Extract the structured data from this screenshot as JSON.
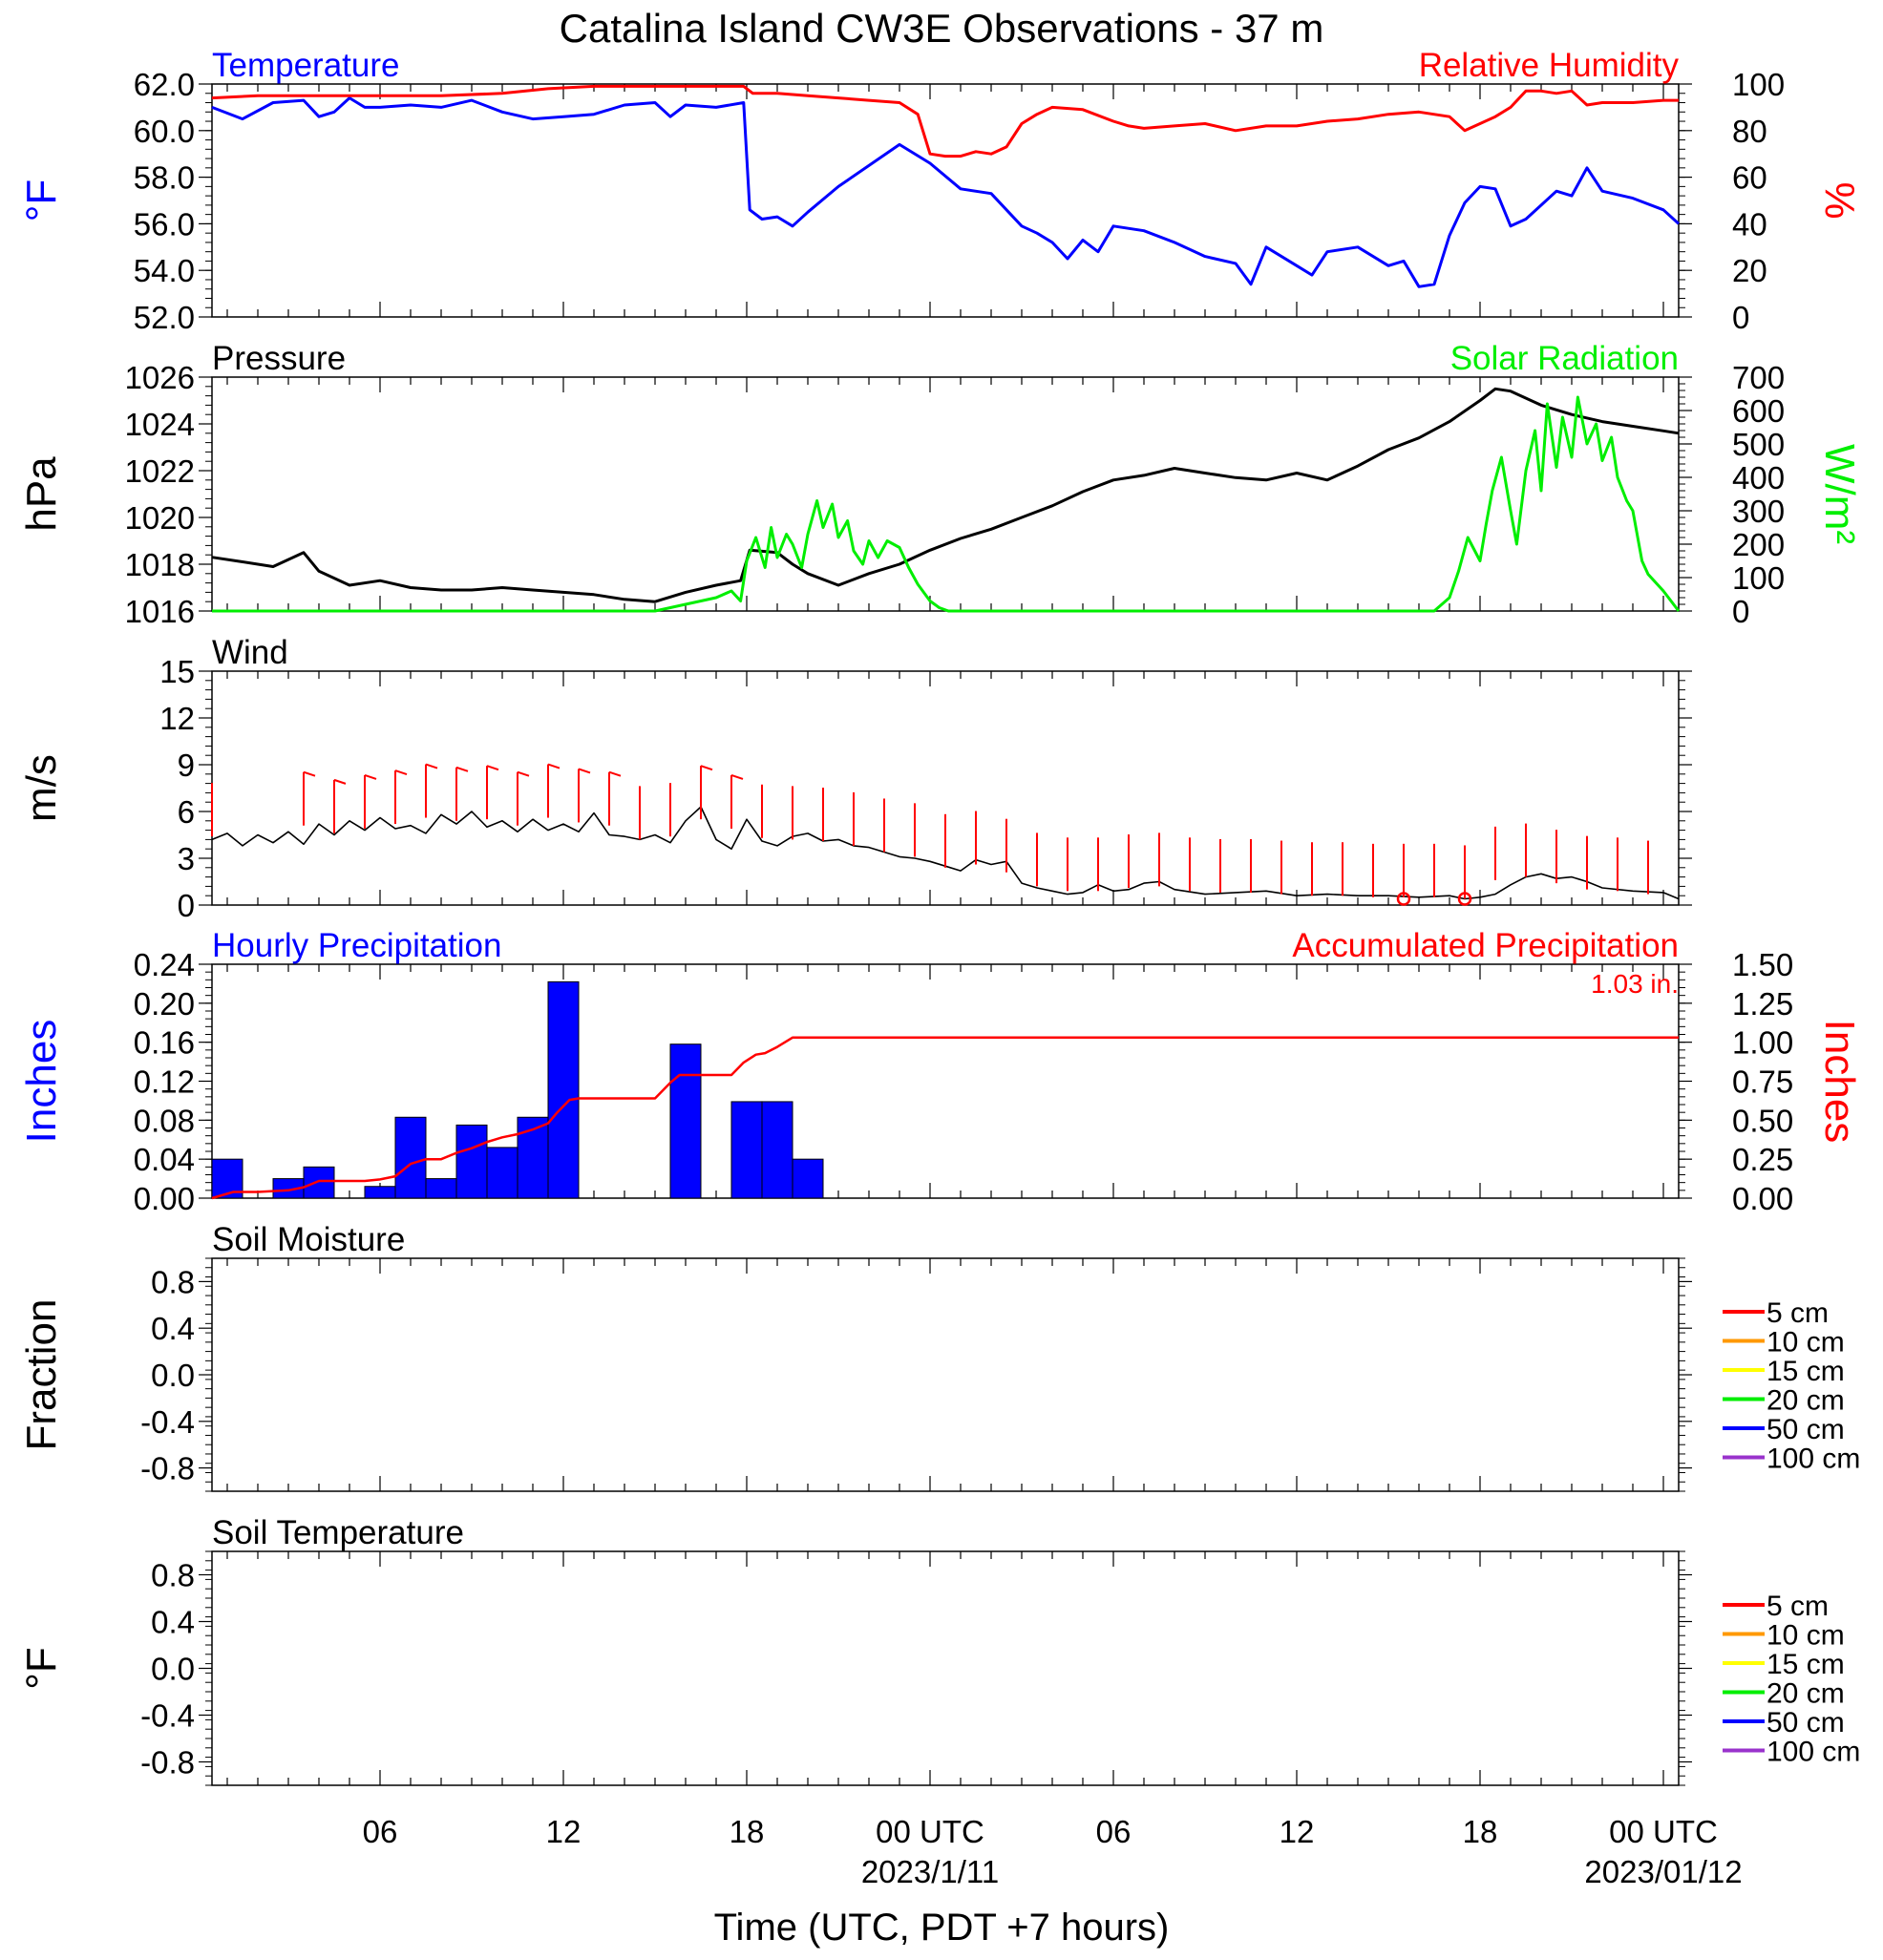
{
  "title": "Catalina Island CW3E Observations - 37 m",
  "xlabel": "Time (UTC, PDT +7 hours)",
  "x_ticks": [
    {
      "hour": 6,
      "label": "06",
      "sub": ""
    },
    {
      "hour": 12,
      "label": "12",
      "sub": ""
    },
    {
      "hour": 18,
      "label": "18",
      "sub": ""
    },
    {
      "hour": 24,
      "label": "00 UTC",
      "sub": "2023/1/11"
    },
    {
      "hour": 30,
      "label": "06",
      "sub": ""
    },
    {
      "hour": 36,
      "label": "12",
      "sub": ""
    },
    {
      "hour": 42,
      "label": "18",
      "sub": ""
    },
    {
      "hour": 48,
      "label": "00 UTC",
      "sub": "2023/01/12"
    }
  ],
  "x_range_hours": [
    0.5,
    48.5
  ],
  "colors": {
    "temperature": "#0000ff",
    "humidity": "#ff0000",
    "pressure": "#000000",
    "solar": "#00ee00",
    "wind": "#000000",
    "barb": "#ff0000",
    "precip_bar": "#0000ff",
    "precip_accum": "#ff0000"
  },
  "legend": [
    {
      "label": "5 cm",
      "color": "#ff0000"
    },
    {
      "label": "10 cm",
      "color": "#ff9900"
    },
    {
      "label": "15 cm",
      "color": "#ffff00"
    },
    {
      "label": "20 cm",
      "color": "#00ee00"
    },
    {
      "label": "50 cm",
      "color": "#0000ff"
    },
    {
      "label": "100 cm",
      "color": "#9933cc"
    }
  ],
  "chart_data": [
    {
      "type": "line",
      "panel_title_left": "Temperature",
      "panel_title_right": "Relative Humidity",
      "ylabel_left": "°F",
      "ylabel_right": "%",
      "ylim_left": [
        52,
        62
      ],
      "yticks_left": [
        "62.0",
        "60.0",
        "58.0",
        "56.0",
        "54.0",
        "52.0"
      ],
      "ylim_right": [
        0,
        100
      ],
      "yticks_right": [
        "100",
        "80",
        "60",
        "40",
        "20",
        "0"
      ],
      "series": [
        {
          "name": "Temperature",
          "axis": "left",
          "x": [
            0.5,
            1.5,
            2.5,
            3.5,
            4.0,
            4.5,
            5.0,
            5.5,
            6.0,
            7.0,
            8.0,
            9.0,
            10.0,
            11.0,
            12.0,
            13.0,
            14.0,
            15.0,
            15.5,
            16.0,
            17.0,
            17.9,
            18.1,
            18.5,
            19.0,
            19.5,
            20.0,
            21.0,
            22.0,
            23.0,
            24.0,
            25.0,
            26.0,
            27.0,
            27.5,
            28.0,
            28.5,
            29.0,
            29.5,
            30.0,
            31.0,
            32.0,
            32.5,
            33.0,
            34.0,
            34.5,
            35.0,
            36.0,
            36.5,
            37.0,
            38.0,
            39.0,
            39.5,
            40.0,
            40.5,
            41.0,
            41.5,
            42.0,
            42.5,
            43.0,
            43.5,
            44.0,
            44.5,
            45.0,
            45.5,
            46.0,
            47.0,
            48.0,
            48.5
          ],
          "values": [
            61.0,
            60.5,
            61.2,
            61.3,
            60.6,
            60.8,
            61.4,
            61.0,
            61.0,
            61.1,
            61.0,
            61.3,
            60.8,
            60.5,
            60.6,
            60.7,
            61.1,
            61.2,
            60.6,
            61.1,
            61.0,
            61.2,
            56.6,
            56.2,
            56.3,
            55.9,
            56.5,
            57.6,
            58.5,
            59.4,
            58.6,
            57.5,
            57.3,
            55.9,
            55.6,
            55.2,
            54.5,
            55.3,
            54.8,
            55.9,
            55.7,
            55.2,
            54.9,
            54.6,
            54.3,
            53.4,
            55.0,
            54.2,
            53.8,
            54.8,
            55.0,
            54.2,
            54.4,
            53.3,
            53.4,
            55.5,
            56.9,
            57.6,
            57.5,
            55.9,
            56.2,
            56.8,
            57.4,
            57.2,
            58.4,
            57.4,
            57.1,
            56.6,
            56.0
          ]
        },
        {
          "name": "Relative Humidity",
          "axis": "right",
          "x": [
            0.5,
            2.0,
            4.0,
            6.0,
            8.0,
            10.0,
            11.5,
            13.0,
            14.5,
            16.0,
            17.0,
            17.9,
            18.2,
            19.0,
            20.0,
            21.0,
            22.0,
            23.0,
            23.6,
            24.0,
            24.5,
            25.0,
            25.5,
            26.0,
            26.5,
            27.0,
            27.5,
            28.0,
            29.0,
            30.0,
            30.5,
            31.0,
            32.0,
            33.0,
            34.0,
            35.0,
            36.0,
            37.0,
            38.0,
            39.0,
            40.0,
            41.0,
            41.5,
            42.0,
            42.5,
            43.0,
            43.5,
            44.0,
            44.5,
            45.0,
            45.5,
            46.0,
            47.0,
            48.0,
            48.5
          ],
          "values": [
            94,
            95,
            95,
            95,
            95,
            96,
            98,
            99,
            99,
            99,
            99,
            99,
            96,
            96,
            95,
            94,
            93,
            92,
            87,
            70,
            69,
            69,
            71,
            70,
            73,
            83,
            87,
            90,
            89,
            84,
            82,
            81,
            82,
            83,
            80,
            82,
            82,
            84,
            85,
            87,
            88,
            86,
            80,
            83,
            86,
            90,
            97,
            97,
            96,
            97,
            91,
            92,
            92,
            93,
            93
          ]
        }
      ]
    },
    {
      "type": "line",
      "panel_title_left": "Pressure",
      "panel_title_right": "Solar Radiation",
      "ylabel_left": "hPa",
      "ylabel_right": "W/m²",
      "ylim_left": [
        1016,
        1026
      ],
      "yticks_left": [
        "1026",
        "1024",
        "1022",
        "1020",
        "1018",
        "1016"
      ],
      "ylim_right": [
        0,
        700
      ],
      "yticks_right": [
        "700",
        "600",
        "500",
        "400",
        "300",
        "200",
        "100",
        "0"
      ],
      "series": [
        {
          "name": "Pressure",
          "axis": "left",
          "x": [
            0.5,
            1.5,
            2.5,
            3.5,
            4.0,
            5.0,
            6.0,
            7.0,
            8.0,
            9.0,
            10.0,
            11.0,
            12.0,
            13.0,
            14.0,
            15.0,
            16.0,
            17.0,
            17.8,
            18.1,
            19.0,
            19.5,
            20.0,
            21.0,
            22.0,
            23.0,
            24.0,
            25.0,
            26.0,
            27.0,
            28.0,
            29.0,
            30.0,
            31.0,
            32.0,
            33.0,
            34.0,
            35.0,
            36.0,
            37.0,
            38.0,
            39.0,
            40.0,
            41.0,
            42.0,
            42.5,
            43.0,
            44.0,
            45.0,
            46.0,
            47.0,
            48.0,
            48.5
          ],
          "values": [
            1018.3,
            1018.1,
            1017.9,
            1018.5,
            1017.7,
            1017.1,
            1017.3,
            1017.0,
            1016.9,
            1016.9,
            1017.0,
            1016.9,
            1016.8,
            1016.7,
            1016.5,
            1016.4,
            1016.8,
            1017.1,
            1017.3,
            1018.6,
            1018.5,
            1018.0,
            1017.6,
            1017.1,
            1017.6,
            1018.0,
            1018.6,
            1019.1,
            1019.5,
            1020.0,
            1020.5,
            1021.1,
            1021.6,
            1021.8,
            1022.1,
            1021.9,
            1021.7,
            1021.6,
            1021.9,
            1021.6,
            1022.2,
            1022.9,
            1023.4,
            1024.1,
            1025.0,
            1025.5,
            1025.4,
            1024.8,
            1024.4,
            1024.1,
            1023.9,
            1023.7,
            1023.6
          ]
        },
        {
          "name": "Solar Radiation",
          "axis": "right",
          "x": [
            0.5,
            15.0,
            15.5,
            16.0,
            16.5,
            17.0,
            17.5,
            17.8,
            18.0,
            18.3,
            18.6,
            18.8,
            19.0,
            19.3,
            19.5,
            19.8,
            20.0,
            20.3,
            20.5,
            20.8,
            21.0,
            21.3,
            21.5,
            21.8,
            22.0,
            22.3,
            22.6,
            23.0,
            23.3,
            23.6,
            24.0,
            24.3,
            24.6,
            25.0,
            40.5,
            41.0,
            41.3,
            41.6,
            42.0,
            42.2,
            42.4,
            42.7,
            43.0,
            43.2,
            43.5,
            43.8,
            44.0,
            44.2,
            44.5,
            44.7,
            45.0,
            45.2,
            45.5,
            45.8,
            46.0,
            46.3,
            46.5,
            46.8,
            47.0,
            47.3,
            47.5,
            48.0,
            48.5
          ],
          "values": [
            0,
            0,
            10,
            20,
            30,
            40,
            60,
            30,
            150,
            220,
            130,
            250,
            160,
            230,
            200,
            130,
            230,
            330,
            250,
            320,
            220,
            270,
            180,
            140,
            210,
            160,
            210,
            190,
            130,
            80,
            30,
            10,
            0,
            0,
            0,
            40,
            120,
            220,
            150,
            260,
            360,
            460,
            300,
            200,
            420,
            540,
            360,
            620,
            430,
            580,
            460,
            640,
            500,
            560,
            450,
            520,
            400,
            330,
            300,
            150,
            110,
            60,
            0
          ]
        }
      ]
    },
    {
      "type": "line",
      "panel_title_left": "Wind",
      "ylabel_left": "m/s",
      "ylim_left": [
        0,
        15
      ],
      "yticks_left": [
        "15",
        "12",
        "9",
        "6",
        "3",
        "0"
      ],
      "series": [
        {
          "name": "Wind",
          "axis": "left",
          "x": [
            0.5,
            1.0,
            1.5,
            2.0,
            2.5,
            3.0,
            3.5,
            4.0,
            4.5,
            5.0,
            5.5,
            6.0,
            6.5,
            7.0,
            7.5,
            8.0,
            8.5,
            9.0,
            9.5,
            10.0,
            10.5,
            11.0,
            11.5,
            12.0,
            12.5,
            13.0,
            13.5,
            14.0,
            14.5,
            15.0,
            15.5,
            16.0,
            16.5,
            17.0,
            17.5,
            18.0,
            18.5,
            19.0,
            19.5,
            20.0,
            20.5,
            21.0,
            21.5,
            22.0,
            22.5,
            23.0,
            23.5,
            24.0,
            24.5,
            25.0,
            25.5,
            26.0,
            26.5,
            27.0,
            27.5,
            28.0,
            28.5,
            29.0,
            29.5,
            30.0,
            30.5,
            31.0,
            31.5,
            32.0,
            33.0,
            34.0,
            35.0,
            36.0,
            37.0,
            38.0,
            39.0,
            40.0,
            41.0,
            41.5,
            42.0,
            42.5,
            43.0,
            43.5,
            44.0,
            44.5,
            45.0,
            45.5,
            46.0,
            47.0,
            48.0,
            48.5
          ],
          "values": [
            4.2,
            4.6,
            3.8,
            4.5,
            4.0,
            4.7,
            3.9,
            5.2,
            4.5,
            5.4,
            4.8,
            5.6,
            4.9,
            5.1,
            4.6,
            5.8,
            5.2,
            6.0,
            5.0,
            5.4,
            4.7,
            5.5,
            4.8,
            5.2,
            4.7,
            5.9,
            4.5,
            4.4,
            4.2,
            4.5,
            4.0,
            5.4,
            6.3,
            4.2,
            3.6,
            5.5,
            4.1,
            3.8,
            4.4,
            4.6,
            4.1,
            4.2,
            3.8,
            3.7,
            3.4,
            3.1,
            3.0,
            2.8,
            2.5,
            2.2,
            2.9,
            2.6,
            2.8,
            1.4,
            1.1,
            0.9,
            0.7,
            0.8,
            1.3,
            0.9,
            1.0,
            1.4,
            1.5,
            1.0,
            0.7,
            0.8,
            0.9,
            0.6,
            0.7,
            0.6,
            0.6,
            0.5,
            0.6,
            0.4,
            0.5,
            0.7,
            1.3,
            1.8,
            2.0,
            1.7,
            1.8,
            1.5,
            1.1,
            0.9,
            0.8,
            0.4
          ]
        }
      ],
      "barbs": {
        "x": [
          0.5,
          3.5,
          4.5,
          5.5,
          6.5,
          7.5,
          8.5,
          9.5,
          10.5,
          11.5,
          12.5,
          13.5,
          14.5,
          15.5,
          16.5,
          17.5,
          18.5,
          19.5,
          20.5,
          21.5,
          22.5,
          23.5,
          24.5,
          25.5,
          26.5,
          27.5,
          28.5,
          29.5,
          30.5,
          31.5,
          32.5,
          33.5,
          34.5,
          35.5,
          36.5,
          37.5,
          38.5,
          39.5,
          40.5,
          41.5,
          42.5,
          43.5,
          44.5,
          45.5,
          46.5,
          47.5
        ],
        "speed": [
          4.4,
          5.1,
          4.6,
          4.9,
          5.2,
          5.6,
          5.4,
          5.5,
          5.1,
          5.6,
          5.3,
          5.1,
          4.2,
          4.4,
          5.5,
          4.9,
          4.3,
          4.2,
          4.1,
          3.8,
          3.4,
          3.1,
          2.4,
          2.6,
          2.1,
          1.2,
          0.9,
          0.9,
          1.1,
          1.2,
          0.9,
          0.8,
          0.8,
          0.7,
          0.6,
          0.6,
          0.5,
          0.5,
          0.5,
          0.4,
          1.6,
          1.8,
          1.4,
          1.0,
          0.9,
          0.7
        ],
        "calm_x": [
          39.5,
          41.5
        ]
      }
    },
    {
      "type": "bar",
      "panel_title_left": "Hourly Precipitation",
      "panel_title_right": "Accumulated Precipitation",
      "accum_label": "1.03 in.",
      "ylabel_left": "Inches",
      "ylabel_right": "Inches",
      "ylim_left": [
        0,
        0.24
      ],
      "yticks_left": [
        "0.24",
        "0.20",
        "0.16",
        "0.12",
        "0.08",
        "0.04",
        "0.00"
      ],
      "ylim_right": [
        0,
        1.5
      ],
      "yticks_right": [
        "1.50",
        "1.25",
        "1.00",
        "0.75",
        "0.50",
        "0.25",
        "0.00"
      ],
      "bars": {
        "x_start": [
          0.5,
          2.5,
          3.5,
          5.5,
          6.5,
          7.5,
          8.5,
          9.5,
          10.5,
          11.5,
          15.5,
          17.5,
          18.5,
          19.5
        ],
        "values": [
          0.04,
          0.02,
          0.032,
          0.012,
          0.083,
          0.02,
          0.075,
          0.052,
          0.083,
          0.222,
          0.158,
          0.099,
          0.099,
          0.04
        ]
      },
      "accumulated": {
        "x": [
          0.5,
          1.2,
          2.0,
          3.0,
          3.5,
          4.0,
          5.5,
          6.0,
          6.5,
          7.0,
          7.5,
          8.0,
          8.5,
          9.0,
          9.5,
          10.0,
          10.5,
          11.0,
          11.5,
          11.8,
          12.2,
          12.5,
          13.5,
          14.5,
          15.0,
          15.5,
          15.8,
          16.5,
          17.0,
          17.5,
          17.9,
          18.3,
          18.6,
          19.0,
          19.5,
          20.0,
          48.5
        ],
        "values": [
          0.0,
          0.04,
          0.04,
          0.05,
          0.07,
          0.11,
          0.11,
          0.12,
          0.14,
          0.22,
          0.25,
          0.25,
          0.29,
          0.32,
          0.36,
          0.39,
          0.41,
          0.44,
          0.48,
          0.55,
          0.63,
          0.64,
          0.64,
          0.64,
          0.64,
          0.74,
          0.79,
          0.79,
          0.79,
          0.79,
          0.87,
          0.92,
          0.93,
          0.97,
          1.03,
          1.03,
          1.03
        ]
      }
    },
    {
      "type": "line",
      "panel_title_left": "Soil Moisture",
      "ylabel_left": "Fraction",
      "ylim_left": [
        -1,
        1
      ],
      "yticks_left": [
        "0.8",
        "0.4",
        "0.0",
        "-0.4",
        "-0.8"
      ],
      "series": []
    },
    {
      "type": "line",
      "panel_title_left": "Soil Temperature",
      "ylabel_left": "°F",
      "ylim_left": [
        -1,
        1
      ],
      "yticks_left": [
        "0.8",
        "0.4",
        "0.0",
        "-0.4",
        "-0.8"
      ],
      "series": []
    }
  ]
}
